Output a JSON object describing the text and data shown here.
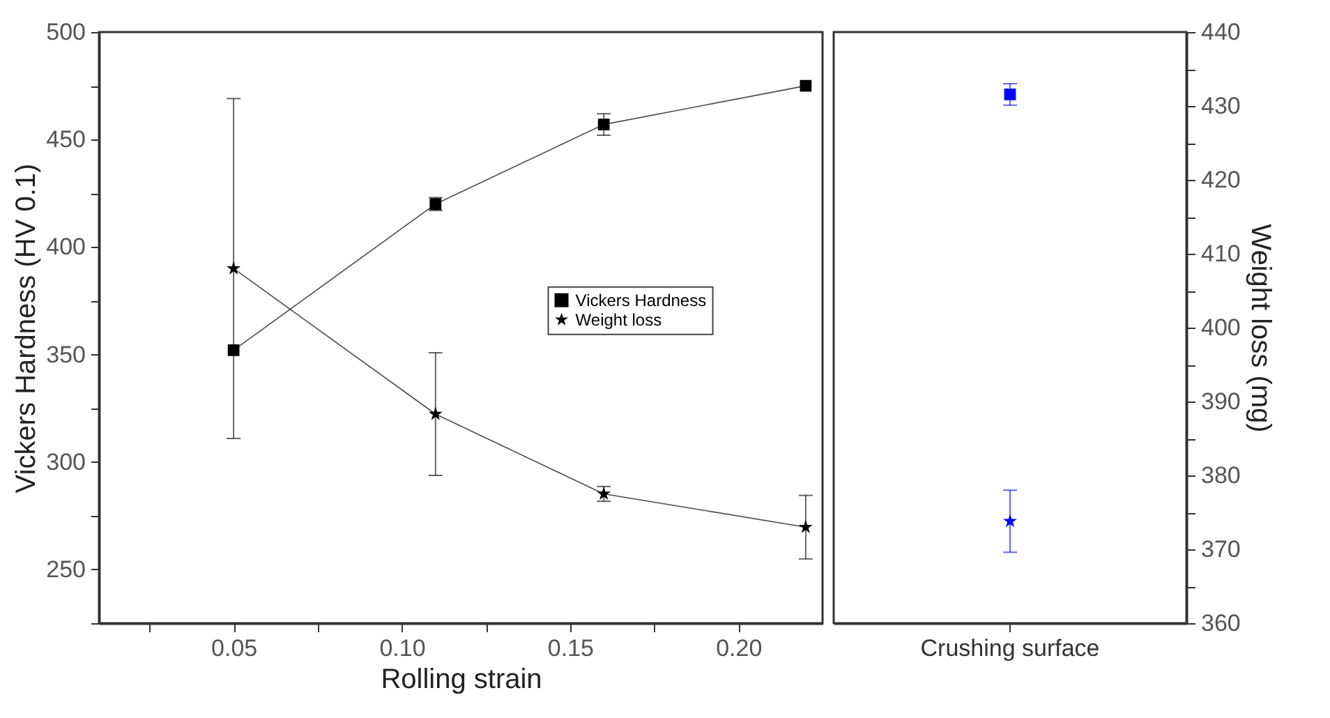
{
  "chart_data": [
    {
      "type": "line",
      "xlabel": "Rolling strain",
      "ylabel": "Vickers Hardness (HV 0.1)",
      "x": [
        0.05,
        0.11,
        0.16,
        0.22
      ],
      "series": [
        {
          "name": "Vickers Hardness",
          "color": "#000000",
          "marker": "square",
          "values": [
            352,
            420,
            457,
            475
          ],
          "errors": [
            null,
            3,
            5,
            null
          ]
        },
        {
          "name": "Weight loss",
          "color": "#000000",
          "marker": "star",
          "axis": "y2",
          "values": [
            408,
            388.3,
            377.5,
            373
          ],
          "errors": [
            23,
            8.3,
            1,
            4.3
          ]
        }
      ],
      "xlim": [
        0.01,
        0.225
      ],
      "xticks": [
        {
          "value": 0.025,
          "label": null
        },
        {
          "value": 0.05,
          "label": "0.05"
        },
        {
          "value": 0.075,
          "label": null
        },
        {
          "value": 0.1,
          "label": "0.10"
        },
        {
          "value": 0.125,
          "label": null
        },
        {
          "value": 0.15,
          "label": "0.15"
        },
        {
          "value": 0.175,
          "label": null
        },
        {
          "value": 0.2,
          "label": "0.20"
        }
      ],
      "ylim": [
        225,
        500
      ],
      "yticks": [
        {
          "value": 225,
          "label": null
        },
        250,
        {
          "value": 275,
          "label": null
        },
        300,
        {
          "value": 325,
          "label": null
        },
        350,
        {
          "value": 375,
          "label": null
        },
        400,
        {
          "value": 425,
          "label": null
        },
        450,
        {
          "value": 475,
          "label": null
        },
        500
      ],
      "y2lim": [
        360,
        440
      ],
      "legend": "right",
      "line_style": "solid"
    },
    {
      "type": "scatter",
      "categories": [
        "Crushing surface"
      ],
      "y2label": "Weight loss (mg)",
      "series": [
        {
          "color": "#0000ff",
          "marker": "square",
          "values": [
            471
          ],
          "errors": [
            5
          ]
        },
        {
          "color": "#0000ff",
          "marker": "star",
          "axis": "y2",
          "values": [
            373.8
          ],
          "errors": [
            4.2
          ]
        }
      ],
      "ylim": [
        225,
        500
      ],
      "y2lim": [
        360,
        440
      ],
      "y2ticks": [
        360,
        {
          "value": 365,
          "label": null
        },
        370,
        {
          "value": 375,
          "label": null
        },
        380,
        {
          "value": 385,
          "label": null
        },
        390,
        {
          "value": 395,
          "label": null
        },
        400,
        {
          "value": 405,
          "label": null
        },
        410,
        {
          "value": 415,
          "label": null
        },
        420,
        {
          "value": 425,
          "label": null
        },
        430,
        {
          "value": 435,
          "label": null
        },
        440
      ]
    }
  ]
}
